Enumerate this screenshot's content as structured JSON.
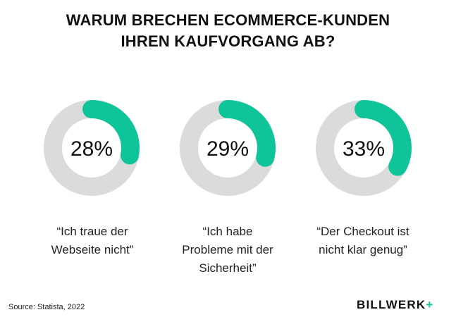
{
  "title": {
    "line1": "WARUM BRECHEN ECOMMERCE-KUNDEN",
    "line2": "IHREN KAUFVORGANG AB?"
  },
  "chart_data": {
    "type": "donut",
    "items": [
      {
        "value": 28,
        "label_text": "28%",
        "caption": [
          "“Ich traue der",
          "Webseite nicht”"
        ]
      },
      {
        "value": 29,
        "label_text": "29%",
        "caption": [
          "“Ich habe",
          "Probleme mit der",
          "Sicherheit”"
        ]
      },
      {
        "value": 33,
        "label_text": "33%",
        "caption": [
          "“Der Checkout ist",
          "nicht klar genug”"
        ]
      }
    ],
    "max": 100
  },
  "colors": {
    "accent": "#10c49a",
    "track": "#dbdbdb",
    "text": "#111111"
  },
  "source": "Source: Statista, 2022",
  "logo": {
    "text": "BILLWERK",
    "plus": "+"
  }
}
